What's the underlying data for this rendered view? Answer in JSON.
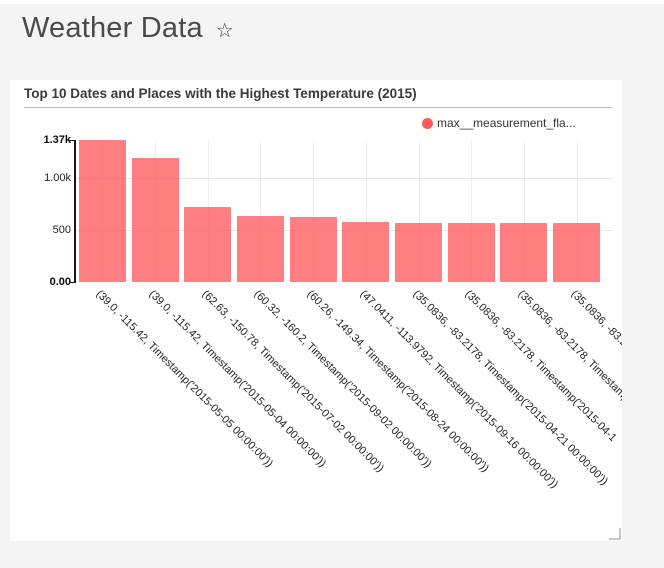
{
  "page": {
    "title": "Weather Data",
    "favorite_icon_glyph": "☆",
    "background_color": "#f4f4f4"
  },
  "card": {
    "title": "Top 10 Dates and Places with the Highest Temperature (2015)",
    "legend_label": "max__measurement_fla...",
    "legend_color": "#fb5a60"
  },
  "chart_data": {
    "type": "bar",
    "title": "Top 10 Dates and Places with the Highest Temperature (2015)",
    "series_name": "max__measurement_fla...",
    "categories": [
      "(39.0, -115.42, Timestamp('2015-05-05 00:00:00'))",
      "(39.0, -115.42, Timestamp('2015-05-04 00:00:00'))",
      "(62.63, -150.78, Timestamp('2015-07-02 00:00:00'))",
      "(60.32, -160.2, Timestamp('2015-09-02 00:00:00'))",
      "(60.26, -149.34, Timestamp('2015-08-24 00:00:00'))",
      "(47.0411, -113.9792, Timestamp('2015-09-16 00:00:00'))",
      "(35.0836, -83.2178, Timestamp('2015-04-21 00:00:00'))",
      "(35.0836, -83.2178, Timestamp('2015-04-1",
      "(35.0836, -83.2178, Timestamp('2",
      "(35.0836, -83.2"
    ],
    "values": [
      1370,
      1200,
      728,
      640,
      625,
      580,
      572,
      572,
      572,
      570
    ],
    "bar_color": "rgba(255,90,95,0.78)",
    "xlabel": "",
    "ylabel": "",
    "ylim": [
      0,
      1370
    ],
    "y_ticks": [
      {
        "label": "0.00",
        "value": 0,
        "bold": true
      },
      {
        "label": "500",
        "value": 500,
        "bold": false
      },
      {
        "label": "1.00k",
        "value": 1000,
        "bold": false
      },
      {
        "label": "1.37k",
        "value": 1370,
        "bold": true
      }
    ],
    "x_label_rotation_deg": 45,
    "grid": true,
    "legend_position": "top-right"
  }
}
